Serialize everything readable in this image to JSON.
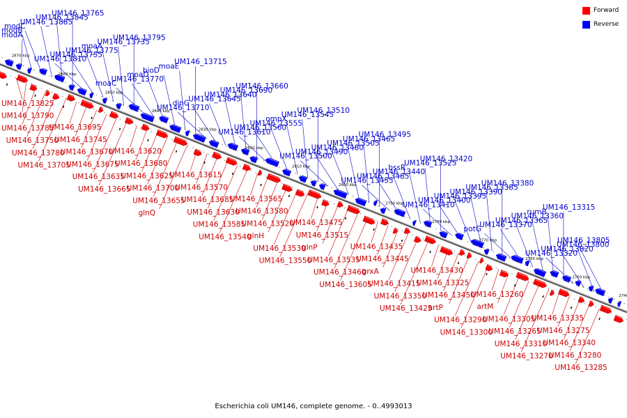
{
  "legend": {
    "forward": {
      "label": "Forward",
      "color": "#ff0000"
    },
    "reverse": {
      "label": "Reverse",
      "color": "#0000ff"
    }
  },
  "caption": "Escherichia coli UM146, complete genome. - 0..4993013",
  "ticks": [
    "2870 kbp",
    "2860 kbp",
    "2850 kbp",
    "2840 kbp",
    "2830 kbp",
    "2820 kbp",
    "2810 kbp",
    "2800 kbp",
    "2790 kbp",
    "2780 kbp",
    "2770 kbp",
    "2760 kbp",
    "2750 kbp",
    "2740 kbp"
  ],
  "reverse_labels": [
    "modA",
    "modB",
    "modC",
    "UM146_13885",
    "UM146_13845",
    "UM146_13765",
    "UM146_13810",
    "UM146_13755",
    "UM146_13775",
    "moaA",
    "UM146_13735",
    "UM146_13795",
    "moaC",
    "UM146_13770",
    "moaD",
    "bioD",
    "moaE",
    "UM146_13715",
    "UM146_13710",
    "dinG",
    "UM146_13645",
    "UM146_13640",
    "UM146_13690",
    "UM146_13660",
    "UM146_13610",
    "UM146_13560",
    "UM146_13555",
    "ompX",
    "UM146_13545",
    "UM146_13510",
    "UM146_13500",
    "UM146_13490",
    "UM146_13480",
    "UM146_13505",
    "UM146_13465",
    "UM146_13495",
    "UM146_13455",
    "UM146_13485",
    "UM146_13440",
    "bssR",
    "UM146_13525",
    "UM146_13420",
    "UM146_13410",
    "UM146_13400",
    "UM146_13395",
    "UM146_13390",
    "UM146_13385",
    "UM146_13380",
    "potG",
    "UM146_13370",
    "UM146_13365",
    "UM146_13360",
    "rumB",
    "UM146_13315",
    "UM146_13320",
    "UM146_13820",
    "UM146_13800",
    "UM146_13805"
  ],
  "forward_labels": [
    "UM146_13825",
    "UM146_13790",
    "UM146_13785",
    "UM146_13750",
    "UM146_13780",
    "UM146_13705",
    "UM146_13695",
    "UM146_13745",
    "UM146_13670",
    "UM146_13675",
    "UM146_13635",
    "UM146_13665",
    "UM146_13620",
    "UM146_13680",
    "UM146_13625",
    "UM146_13700",
    "UM146_13655",
    "glnQ",
    "UM146_13615",
    "UM146_13570",
    "UM146_13685",
    "UM146_13630",
    "UM146_13585",
    "UM146_13540",
    "UM146_13565",
    "UM146_13580",
    "UM146_13520",
    "glnH",
    "UM146_13530",
    "UM146_13550",
    "UM146_13475",
    "UM146_13515",
    "glnP",
    "UM146_13535",
    "UM146_13460",
    "UM146_13605",
    "UM146_13435",
    "UM146_13445",
    "grxA",
    "UM146_13415",
    "UM146_13350",
    "UM146_13425",
    "UM146_13430",
    "UM146_13325",
    "UM146_13450",
    "artP",
    "UM146_13290",
    "UM146_13300",
    "UM146_13260",
    "artM",
    "UM146_13305",
    "UM146_13265",
    "UM146_13310",
    "UM146_13270",
    "UM146_13335",
    "UM146_13275",
    "UM146_13340",
    "UM146_13280",
    "UM146_13285"
  ]
}
